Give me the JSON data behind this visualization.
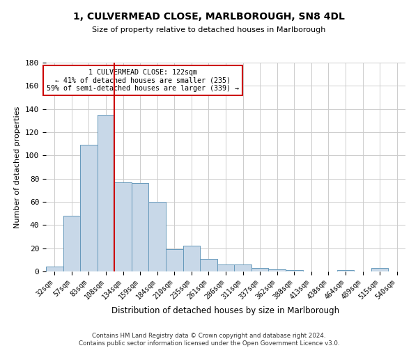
{
  "title_line1": "1, CULVERMEAD CLOSE, MARLBOROUGH, SN8 4DL",
  "title_line2": "Size of property relative to detached houses in Marlborough",
  "xlabel": "Distribution of detached houses by size in Marlborough",
  "ylabel": "Number of detached properties",
  "bar_color": "#c8d8e8",
  "bar_edge_color": "#6699bb",
  "bar_edge_width": 0.7,
  "grid_color": "#cccccc",
  "categories": [
    "32sqm",
    "57sqm",
    "83sqm",
    "108sqm",
    "134sqm",
    "159sqm",
    "184sqm",
    "210sqm",
    "235sqm",
    "261sqm",
    "286sqm",
    "311sqm",
    "337sqm",
    "362sqm",
    "388sqm",
    "413sqm",
    "438sqm",
    "464sqm",
    "489sqm",
    "515sqm",
    "540sqm"
  ],
  "values": [
    4,
    48,
    109,
    135,
    77,
    76,
    60,
    19,
    22,
    11,
    6,
    6,
    3,
    2,
    1,
    0,
    0,
    1,
    0,
    3,
    0
  ],
  "ylim": [
    0,
    180
  ],
  "yticks": [
    0,
    20,
    40,
    60,
    80,
    100,
    120,
    140,
    160,
    180
  ],
  "property_line_x": 3.5,
  "annotation_title": "1 CULVERMEAD CLOSE: 122sqm",
  "annotation_line1": "← 41% of detached houses are smaller (235)",
  "annotation_line2": "59% of semi-detached houses are larger (339) →",
  "annotation_box_color": "#ffffff",
  "annotation_box_edge": "#cc0000",
  "property_line_color": "#cc0000",
  "footer_line1": "Contains HM Land Registry data © Crown copyright and database right 2024.",
  "footer_line2": "Contains public sector information licensed under the Open Government Licence v3.0.",
  "bg_color": "#ffffff",
  "plot_bg_color": "#ffffff"
}
